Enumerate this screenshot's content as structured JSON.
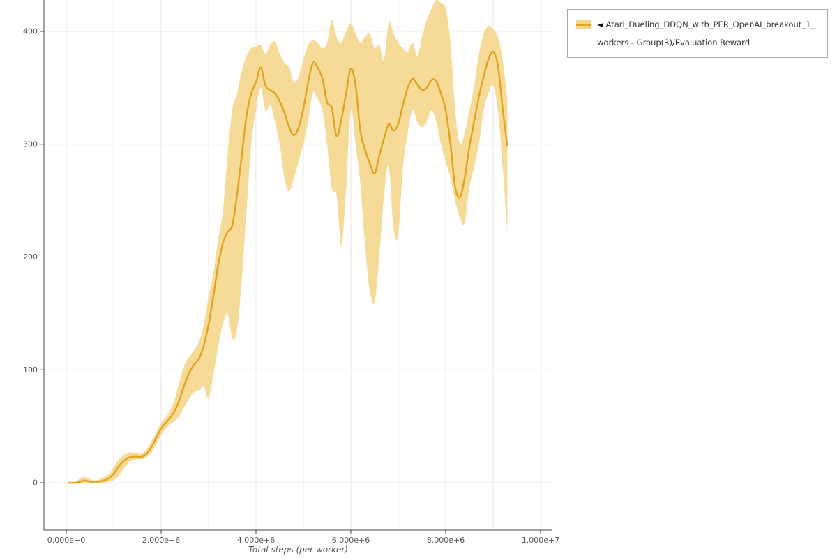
{
  "legend": {
    "collapse_marker": "◄"
  },
  "chart_data": {
    "type": "line",
    "title": "",
    "xlabel": "Total steps (per worker)",
    "ylabel": "",
    "xlim": [
      0,
      10000000
    ],
    "ylim": [
      0,
      428
    ],
    "grid": true,
    "legend_position": "top-right",
    "x_ticks": {
      "values": [
        0,
        2000000,
        4000000,
        6000000,
        8000000,
        10000000
      ],
      "labels": [
        "0.000e+0",
        "2.000e+6",
        "4.000e+6",
        "6.000e+6",
        "8.000e+6",
        "1.000e+7"
      ]
    },
    "y_ticks": {
      "values": [
        0,
        100,
        200,
        300,
        400
      ],
      "labels": [
        "0",
        "100",
        "200",
        "300",
        "400"
      ]
    },
    "series": [
      {
        "name": "Atari_Dueling_DDQN_with_PER_OpenAI_breakout_1_workers - Group(3)/Evaluation Reward",
        "color": "#e2a21b",
        "band_color": "#f4d78c",
        "x": [
          50000,
          200000,
          300000,
          400000,
          500000,
          600000,
          700000,
          800000,
          900000,
          1000000,
          1100000,
          1200000,
          1300000,
          1400000,
          1500000,
          1600000,
          1700000,
          1800000,
          1900000,
          2000000,
          2100000,
          2200000,
          2300000,
          2400000,
          2500000,
          2600000,
          2700000,
          2800000,
          2900000,
          3000000,
          3100000,
          3200000,
          3300000,
          3400000,
          3500000,
          3600000,
          3700000,
          3800000,
          3900000,
          4000000,
          4100000,
          4200000,
          4300000,
          4400000,
          4500000,
          4600000,
          4700000,
          4800000,
          4900000,
          5000000,
          5100000,
          5200000,
          5300000,
          5400000,
          5500000,
          5600000,
          5700000,
          5800000,
          5900000,
          6000000,
          6100000,
          6200000,
          6300000,
          6400000,
          6500000,
          6600000,
          6700000,
          6800000,
          6900000,
          7000000,
          7100000,
          7200000,
          7300000,
          7400000,
          7500000,
          7600000,
          7700000,
          7800000,
          7900000,
          8000000,
          8100000,
          8200000,
          8300000,
          8400000,
          8500000,
          8600000,
          8700000,
          8800000,
          8900000,
          9000000,
          9100000,
          9200000,
          9300000
        ],
        "mean": [
          0,
          0,
          1,
          2,
          1,
          1,
          1,
          2,
          4,
          8,
          14,
          19,
          22,
          23,
          23,
          23,
          26,
          32,
          40,
          48,
          53,
          58,
          65,
          75,
          88,
          98,
          105,
          110,
          122,
          140,
          165,
          192,
          212,
          222,
          228,
          255,
          290,
          325,
          345,
          355,
          368,
          352,
          348,
          345,
          338,
          328,
          315,
          308,
          315,
          332,
          355,
          372,
          368,
          358,
          337,
          332,
          307,
          322,
          345,
          367,
          352,
          312,
          295,
          283,
          274,
          290,
          305,
          318,
          312,
          318,
          335,
          350,
          358,
          353,
          348,
          350,
          357,
          356,
          345,
          330,
          300,
          262,
          253,
          270,
          298,
          320,
          342,
          360,
          375,
          382,
          370,
          332,
          298
        ],
        "lower": [
          0,
          0,
          0,
          0,
          0,
          0,
          0,
          0,
          1,
          2,
          6,
          12,
          17,
          20,
          21,
          21,
          23,
          27,
          34,
          42,
          48,
          52,
          55,
          60,
          68,
          75,
          80,
          82,
          85,
          75,
          95,
          120,
          140,
          150,
          128,
          135,
          180,
          240,
          300,
          330,
          350,
          330,
          335,
          320,
          300,
          270,
          258,
          270,
          285,
          300,
          320,
          345,
          340,
          330,
          300,
          260,
          255,
          210,
          260,
          330,
          300,
          265,
          210,
          170,
          160,
          200,
          255,
          280,
          225,
          220,
          280,
          310,
          330,
          320,
          315,
          320,
          330,
          320,
          300,
          285,
          270,
          250,
          235,
          230,
          262,
          280,
          300,
          330,
          345,
          352,
          330,
          280,
          222
        ],
        "upper": [
          0,
          1,
          4,
          5,
          3,
          2,
          3,
          5,
          8,
          14,
          20,
          24,
          26,
          27,
          26,
          26,
          30,
          37,
          45,
          53,
          58,
          65,
          76,
          92,
          105,
          112,
          118,
          125,
          140,
          165,
          185,
          215,
          240,
          290,
          330,
          345,
          365,
          378,
          385,
          386,
          388,
          380,
          388,
          391,
          380,
          372,
          368,
          355,
          360,
          375,
          388,
          392,
          390,
          385,
          390,
          410,
          395,
          390,
          400,
          407,
          398,
          390,
          395,
          398,
          385,
          388,
          375,
          408,
          398,
          390,
          385,
          382,
          390,
          378,
          395,
          410,
          420,
          428,
          425,
          420,
          390,
          330,
          300,
          310,
          330,
          352,
          380,
          398,
          405,
          402,
          395,
          375,
          340
        ]
      }
    ]
  }
}
